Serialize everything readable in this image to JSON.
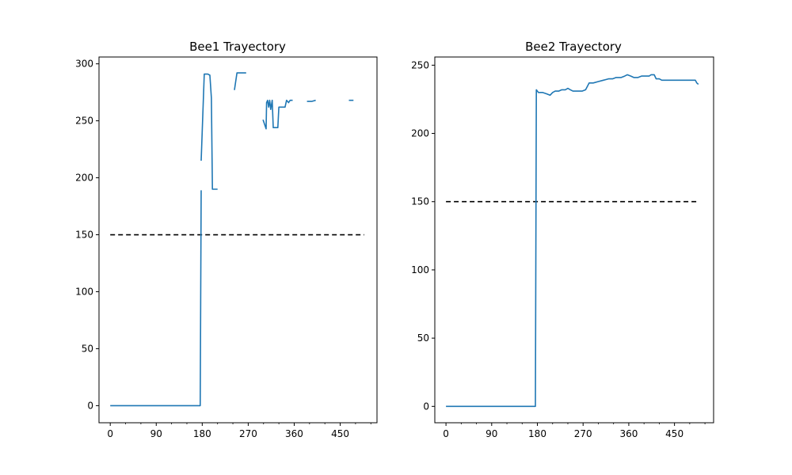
{
  "chart_data": [
    {
      "type": "line",
      "title": "Bee1 Trayectory",
      "xlabel": "",
      "ylabel": "",
      "xlim": [
        -22,
        522
      ],
      "ylim": [
        -15,
        306
      ],
      "xticks": [
        0,
        90,
        180,
        270,
        360,
        450
      ],
      "yticks": [
        0,
        50,
        100,
        150,
        200,
        250,
        300
      ],
      "grid": false,
      "line_color": "#1f77b4",
      "threshold": {
        "y": 150,
        "x": [
          0,
          497
        ],
        "color": "#000000",
        "style": "dashed"
      },
      "series_segments": [
        [
          [
            0,
            0
          ],
          [
            176,
            0
          ],
          [
            178,
            189
          ]
        ],
        [
          [
            178,
            215
          ],
          [
            184,
            291
          ],
          [
            191,
            291
          ],
          [
            195,
            290
          ],
          [
            198,
            270
          ],
          [
            200,
            190
          ],
          [
            210,
            190
          ]
        ],
        [
          [
            243,
            277
          ],
          [
            248,
            292
          ],
          [
            266,
            292
          ]
        ],
        [
          [
            299,
            251
          ],
          [
            305,
            243
          ],
          [
            306,
            266
          ],
          [
            308,
            268
          ],
          [
            310,
            262
          ],
          [
            312,
            268
          ],
          [
            314,
            260
          ],
          [
            317,
            268
          ],
          [
            319,
            244
          ],
          [
            323,
            244
          ],
          [
            328,
            244
          ],
          [
            330,
            262
          ],
          [
            338,
            262
          ],
          [
            342,
            262
          ],
          [
            345,
            268
          ],
          [
            349,
            266
          ],
          [
            352,
            268
          ],
          [
            357,
            268
          ]
        ],
        [
          [
            385,
            267
          ],
          [
            394,
            267
          ],
          [
            402,
            268
          ]
        ],
        [
          [
            467,
            268
          ],
          [
            476,
            268
          ]
        ]
      ]
    },
    {
      "type": "line",
      "title": "Bee2 Trayectory",
      "xlabel": "",
      "ylabel": "",
      "xlim": [
        -22,
        527
      ],
      "ylim": [
        -12,
        256
      ],
      "xticks": [
        0,
        90,
        180,
        270,
        360,
        450
      ],
      "yticks": [
        0,
        50,
        100,
        150,
        200,
        250
      ],
      "grid": false,
      "line_color": "#1f77b4",
      "threshold": {
        "y": 150,
        "x": [
          0,
          497
        ],
        "color": "#000000",
        "style": "dashed"
      },
      "series_segments": [
        [
          [
            0,
            0
          ],
          [
            176,
            0
          ],
          [
            178,
            232
          ],
          [
            182,
            230
          ],
          [
            190,
            230
          ],
          [
            198,
            229
          ],
          [
            205,
            228
          ],
          [
            210,
            230
          ],
          [
            215,
            231
          ],
          [
            222,
            231
          ],
          [
            228,
            232
          ],
          [
            235,
            232
          ],
          [
            240,
            233
          ],
          [
            245,
            232
          ],
          [
            250,
            231
          ],
          [
            260,
            231
          ],
          [
            268,
            231
          ],
          [
            275,
            232
          ],
          [
            282,
            237
          ],
          [
            290,
            237
          ],
          [
            300,
            238
          ],
          [
            310,
            239
          ],
          [
            320,
            240
          ],
          [
            328,
            240
          ],
          [
            335,
            241
          ],
          [
            345,
            241
          ],
          [
            352,
            242
          ],
          [
            357,
            243
          ],
          [
            364,
            242
          ],
          [
            370,
            241
          ],
          [
            378,
            241
          ],
          [
            385,
            242
          ],
          [
            392,
            242
          ],
          [
            400,
            242
          ],
          [
            404,
            243
          ],
          [
            410,
            243
          ],
          [
            414,
            240
          ],
          [
            420,
            240
          ],
          [
            425,
            239
          ],
          [
            432,
            239
          ],
          [
            440,
            239
          ],
          [
            448,
            239
          ],
          [
            455,
            239
          ],
          [
            462,
            239
          ],
          [
            468,
            239
          ],
          [
            474,
            239
          ],
          [
            480,
            239
          ],
          [
            486,
            239
          ],
          [
            491,
            239
          ],
          [
            494,
            237
          ],
          [
            497,
            236
          ]
        ]
      ]
    }
  ]
}
